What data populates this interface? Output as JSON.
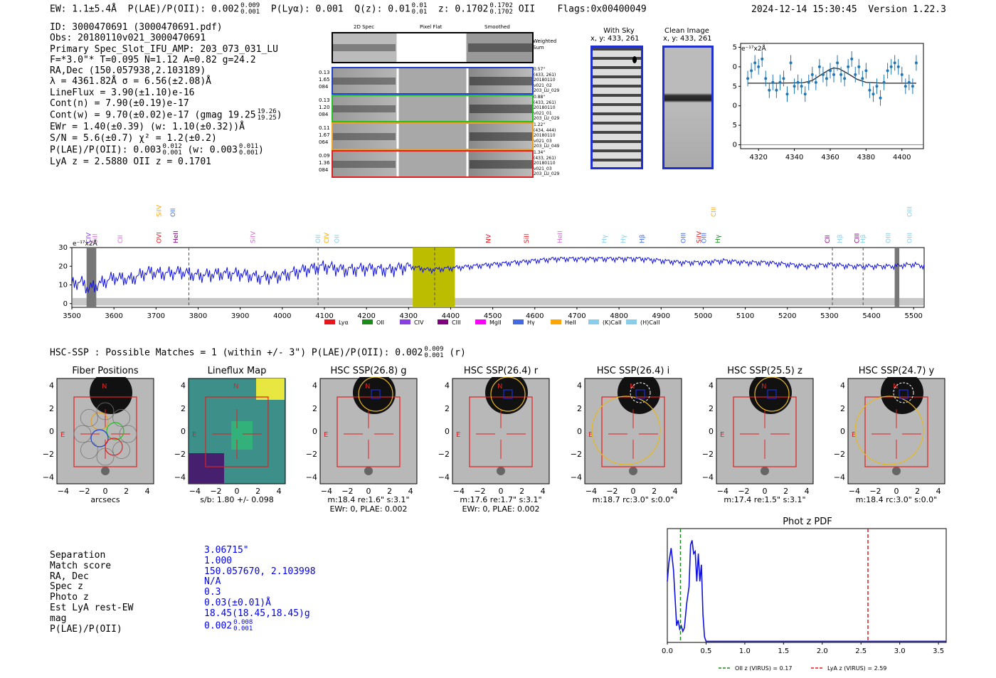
{
  "header": {
    "ew_prefix": "EW: 1.1±5.4Å",
    "ew_plae": "P(LAE)/P(OII): 0.002",
    "ew_plae_hi": "0.009",
    "ew_plae_lo": "0.001",
    "plya": "P(Lyα): 0.001",
    "qz": "Q(z): 0.01",
    "qz_hi": "0.01",
    "qz_lo": "0.01",
    "z": "z: 0.1702",
    "z_hi": "0.1702",
    "z_lo": "0.1702",
    "z_line": "OII",
    "flags": "Flags:0x00400049",
    "timestamp": "2024-12-14 15:30:45",
    "version": "Version 1.22.3"
  },
  "info": {
    "id": "ID: 3000470691 (3000470691.pdf)",
    "obs": "Obs: 20180110v021_3000470691",
    "primary": "Primary Spec_Slot_IFU_AMP: 203_073_031_LU",
    "fiber": "F=*3.0\"*  T=0.095  N=1.12  A=0.82  g=24.2",
    "radec": "RA,Dec (150.057938,2.103189)",
    "lambda": "λ = 4361.82Å  σ = 6.56(±2.08)Å",
    "lineflux": "LineFlux = 3.90(±1.10)e-16",
    "contn": "Cont(n) = 7.90(±0.19)e-17",
    "contw": "Cont(w) = 9.70(±0.02)e-17 (gmag 19.25",
    "contw_hi": "19.26",
    "contw_lo": "19.25",
    "contw_end": ")",
    "ewr": "EWr = 1.40(±0.39) (w: 1.10(±0.32))Å",
    "sn": "S/N = 5.6(±0.7)  χ² = 1.2(±0.2)",
    "plae": "P(LAE)/P(OII): 0.003",
    "plae_hi": "0.012",
    "plae_lo": "0.001",
    "plae_w": "(w: 0.003",
    "plae_w_hi": "0.011",
    "plae_w_lo": "0.001",
    "plae_end": ")",
    "lyaz": "LyA z = 2.5880  OII z = 0.1701"
  },
  "cutouts": {
    "col_2d": "2D Spec",
    "col_flat": "Pixel Flat",
    "col_smooth": "Smoothed",
    "weighted": "Weighted",
    "sum": "Sum",
    "rows": [
      {
        "left": [
          "0.13",
          "1.65",
          "084"
        ],
        "right": [
          "0.57\"",
          "(433, 261)",
          "20180110",
          "v021_02",
          "203_LU_029"
        ],
        "color": "#1f3fd0"
      },
      {
        "left": [
          "0.13",
          "1.20",
          "084"
        ],
        "right": [
          "0.88\"",
          "(433, 261)",
          "20180110",
          "v021_01",
          "203_LU_029"
        ],
        "color": "#22c022"
      },
      {
        "left": [
          "0.11",
          "1.67",
          "064"
        ],
        "right": [
          "1.22\"",
          "(434, 444)",
          "20180110",
          "v021_03",
          "203_LU_049"
        ],
        "color": "#f0a020"
      },
      {
        "left": [
          "0.09",
          "1.36",
          "084"
        ],
        "right": [
          "1.34\"",
          "(433, 261)",
          "20180110",
          "v021_03",
          "203_LU_029"
        ],
        "color": "#e02020"
      }
    ]
  },
  "sky": {
    "with_title": "With Sky",
    "with_coord": "x, y: 433, 261",
    "clean_title": "Clean Image",
    "clean_coord": "x, y: 433, 261"
  },
  "fullspec": {
    "ylabel": "e⁻¹⁷x2Å",
    "legend": [
      {
        "label": "Lyα",
        "color": "#e8141a"
      },
      {
        "label": "OII",
        "color": "#1a8a1a"
      },
      {
        "label": "CIV",
        "color": "#8a3fe0"
      },
      {
        "label": "CIII",
        "color": "#800080"
      },
      {
        "label": "MgII",
        "color": "#ff00ff"
      },
      {
        "label": "Hγ",
        "color": "#4169e1"
      },
      {
        "label": "HeII",
        "color": "#ffa500"
      },
      {
        "label": "(K)CaII",
        "color": "#87ceeb"
      },
      {
        "label": "(H)CaII",
        "color": "#87ceeb"
      }
    ],
    "line_labels": [
      {
        "text": "CIV",
        "wave": 3545,
        "row": 1,
        "color": "#8a3fe0"
      },
      {
        "text": "SiII",
        "wave": 3560,
        "row": 1,
        "color": "#d070d0"
      },
      {
        "text": "CII",
        "wave": 3620,
        "row": 1,
        "color": "#d070d0"
      },
      {
        "text": "SiIV",
        "wave": 3712,
        "row": 0,
        "color": "#ffa500"
      },
      {
        "text": "OVI",
        "wave": 3712,
        "row": 1,
        "color": "#e8141a"
      },
      {
        "text": "OII",
        "wave": 3745,
        "row": 0,
        "color": "#4169e1"
      },
      {
        "text": "HeII",
        "wave": 3752,
        "row": 1,
        "color": "#800080"
      },
      {
        "text": "SiIV",
        "wave": 3935,
        "row": 1,
        "color": "#d070d0"
      },
      {
        "text": "OII",
        "wave": 4090,
        "row": 1,
        "color": "#87ceeb"
      },
      {
        "text": "CIV",
        "wave": 4110,
        "row": 1,
        "color": "#ffa500"
      },
      {
        "text": "OII",
        "wave": 4135,
        "row": 1,
        "color": "#87ceeb"
      },
      {
        "text": "NV",
        "wave": 4495,
        "row": 1,
        "color": "#e8141a"
      },
      {
        "text": "SiII",
        "wave": 4585,
        "row": 1,
        "color": "#e8141a"
      },
      {
        "text": "HeII",
        "wave": 4665,
        "row": 1,
        "color": "#d070d0"
      },
      {
        "text": "Hγ",
        "wave": 4770,
        "row": 1,
        "color": "#87ceeb"
      },
      {
        "text": "Hγ",
        "wave": 4815,
        "row": 1,
        "color": "#87ceeb"
      },
      {
        "text": "Hβ",
        "wave": 4860,
        "row": 1,
        "color": "#4169e1"
      },
      {
        "text": "OIII",
        "wave": 4958,
        "row": 1,
        "color": "#4169e1"
      },
      {
        "text": "SiIV",
        "wave": 4995,
        "row": 1,
        "color": "#e8141a"
      },
      {
        "text": "OIII",
        "wave": 5007,
        "row": 1,
        "color": "#4169e1"
      },
      {
        "text": "Hγ",
        "wave": 5040,
        "row": 1,
        "color": "#1a8a1a"
      },
      {
        "text": "CIII",
        "wave": 5030,
        "row": 0,
        "color": "#ffa500"
      },
      {
        "text": "CII",
        "wave": 5300,
        "row": 1,
        "color": "#800080"
      },
      {
        "text": "Hβ",
        "wave": 5330,
        "row": 1,
        "color": "#87ceeb"
      },
      {
        "text": "CIII",
        "wave": 5370,
        "row": 1,
        "color": "#800080"
      },
      {
        "text": "Hβ",
        "wave": 5385,
        "row": 1,
        "color": "#87ceeb"
      },
      {
        "text": "OIII",
        "wave": 5445,
        "row": 1,
        "color": "#87ceeb"
      },
      {
        "text": "OIII",
        "wave": 5495,
        "row": 1,
        "color": "#87ceeb"
      },
      {
        "text": "OIII",
        "wave": 5495,
        "row": 0,
        "color": "#87ceeb"
      }
    ]
  },
  "hsc_title": {
    "text": "HSC-SSP : Possible Matches = 1 (within +/- 3\")  P(LAE)/P(OII): 0.002",
    "hi": "0.009",
    "lo": "0.001",
    "end": "(r)"
  },
  "stamps": [
    {
      "title": "Fiber Positions",
      "caption1": "arcsecs",
      "caption2": ""
    },
    {
      "title": "Lineflux Map",
      "caption1": "s/b: 1.80 +/- 0.098",
      "caption2": ""
    },
    {
      "title": "HSC SSP(26.8) g",
      "caption1": "m:18.4  re:1.6\"  s:3.1\"",
      "caption2": "EWr: 0, PLAE: 0.002"
    },
    {
      "title": "HSC SSP(26.4) r",
      "caption1": "m:17.6  re:1.7\"  s:3.1\"",
      "caption2": "EWr: 0, PLAE: 0.002"
    },
    {
      "title": "HSC SSP(26.4) i",
      "caption1": "m:18.7 rc:3.0\"  s:0.0\"",
      "caption2": ""
    },
    {
      "title": "HSC SSP(25.5) z",
      "caption1": "m:17.4  re:1.5\"  s:3.1\"",
      "caption2": ""
    },
    {
      "title": "HSC SSP(24.7) y",
      "caption1": "m:18.4 rc:3.0\"  s:0.0\"",
      "caption2": ""
    }
  ],
  "match_table": {
    "labels": [
      "Separation",
      "Match score",
      "RA, Dec",
      "Spec z",
      "Photo z",
      "Est LyA rest-EW",
      "mag",
      "P(LAE)/P(OII)"
    ],
    "values": [
      "3.06715\"",
      "1.000",
      "150.057670, 2.103998",
      "N/A",
      "0.3",
      "0.03(±0.01)Å",
      "18.45(18.45,18.45)g",
      "0.002"
    ],
    "plae_hi": "0.008",
    "plae_lo": "0.001"
  },
  "photz": {
    "title": "Phot z PDF",
    "legend_oii": "OII z (VIRUS) = 0.17",
    "legend_lya": "LyA z (VIRUS) = 2.59"
  },
  "chart_data": [
    {
      "type": "scatter",
      "title": "",
      "ylabel": "e⁻¹⁷x2Å",
      "xlim": [
        4310,
        4412
      ],
      "ylim": [
        -1,
        26
      ],
      "xticks": [
        4320,
        4340,
        4360,
        4380,
        4400
      ],
      "yticks": [
        0,
        5,
        10,
        15,
        20,
        25
      ],
      "x": [
        4314,
        4316,
        4318,
        4320,
        4322,
        4324,
        4326,
        4328,
        4330,
        4332,
        4334,
        4336,
        4338,
        4340,
        4342,
        4344,
        4346,
        4348,
        4350,
        4352,
        4354,
        4356,
        4358,
        4360,
        4362,
        4364,
        4366,
        4368,
        4370,
        4372,
        4374,
        4376,
        4378,
        4380,
        4382,
        4384,
        4386,
        4388,
        4390,
        4392,
        4394,
        4396,
        4398,
        4400,
        4402,
        4404,
        4406,
        4408
      ],
      "y": [
        17,
        19,
        21,
        20,
        22,
        17,
        14,
        16,
        14,
        16,
        17,
        13,
        21,
        15,
        16,
        15,
        13,
        16,
        18,
        16,
        20,
        18,
        17,
        19,
        18,
        21,
        18,
        17,
        20,
        22,
        18,
        20,
        17,
        19,
        14,
        13,
        15,
        12,
        16,
        19,
        20,
        21,
        20,
        18,
        15,
        16,
        15,
        21
      ],
      "fit_x": [
        4314,
        4330,
        4345,
        4350,
        4355,
        4360,
        4362,
        4365,
        4370,
        4375,
        4380,
        4390,
        4408
      ],
      "fit_y": [
        15.8,
        15.8,
        15.9,
        16.5,
        18.0,
        19.4,
        19.7,
        19.5,
        18.2,
        16.8,
        16.0,
        15.8,
        15.8
      ]
    },
    {
      "type": "line",
      "title": "",
      "ylabel": "e⁻¹⁷x2Å",
      "xlim": [
        3500,
        5525
      ],
      "ylim": [
        -2,
        30
      ],
      "xticks": [
        3500,
        3600,
        3700,
        3800,
        3900,
        4000,
        4100,
        4200,
        4300,
        4400,
        4500,
        4600,
        4700,
        4800,
        4900,
        5000,
        5100,
        5200,
        5300,
        5400,
        5500
      ],
      "yticks": [
        0,
        10,
        20,
        30
      ],
      "highlight_band": [
        4310,
        4410
      ],
      "dashed_lines": [
        3778,
        4085,
        4362,
        5307,
        5380
      ],
      "gray_bands": [
        [
          3535,
          3558
        ],
        [
          5455,
          5466
        ]
      ],
      "anchors_x": [
        3500,
        3520,
        3540,
        3560,
        3580,
        3600,
        3640,
        3680,
        3720,
        3760,
        3800,
        3850,
        3900,
        3950,
        4000,
        4050,
        4100,
        4150,
        4200,
        4250,
        4300,
        4350,
        4400,
        4450,
        4500,
        4550,
        4600,
        4650,
        4700,
        4750,
        4800,
        4850,
        4900,
        4950,
        5000,
        5050,
        5100,
        5150,
        5200,
        5250,
        5300,
        5350,
        5400,
        5450,
        5500,
        5525
      ],
      "anchors_y": [
        10,
        12,
        8,
        10,
        12,
        14,
        13,
        17,
        16,
        17,
        15,
        16,
        16,
        14,
        15,
        18,
        20,
        18,
        19,
        18,
        20,
        18,
        19,
        20,
        21,
        22,
        23,
        24,
        24,
        24,
        24,
        24,
        23,
        22,
        22,
        23,
        22,
        22,
        21,
        20,
        21,
        20,
        20,
        20,
        21,
        20
      ]
    },
    {
      "type": "line",
      "title": "Phot z PDF",
      "xlim": [
        0.0,
        3.6
      ],
      "xticks": [
        0.0,
        0.5,
        1.0,
        1.5,
        2.0,
        2.5,
        3.0,
        3.5
      ],
      "ylim": [
        0,
        1
      ],
      "x": [
        0.0,
        0.02,
        0.05,
        0.08,
        0.1,
        0.12,
        0.14,
        0.16,
        0.18,
        0.2,
        0.22,
        0.25,
        0.28,
        0.3,
        0.32,
        0.34,
        0.36,
        0.38,
        0.4,
        0.42,
        0.44,
        0.46,
        0.48,
        0.5,
        0.55,
        0.7,
        1.0,
        2.0,
        3.0,
        3.6
      ],
      "y": [
        0.55,
        0.72,
        0.85,
        0.65,
        0.4,
        0.15,
        0.2,
        0.12,
        0.15,
        0.1,
        0.13,
        0.35,
        0.5,
        0.88,
        0.92,
        0.8,
        0.82,
        0.55,
        0.8,
        0.55,
        0.7,
        0.25,
        0.05,
        0.01,
        0.01,
        0.01,
        0.01,
        0.01,
        0.01,
        0.01
      ],
      "oii_z": 0.17,
      "lya_z": 2.59
    }
  ]
}
